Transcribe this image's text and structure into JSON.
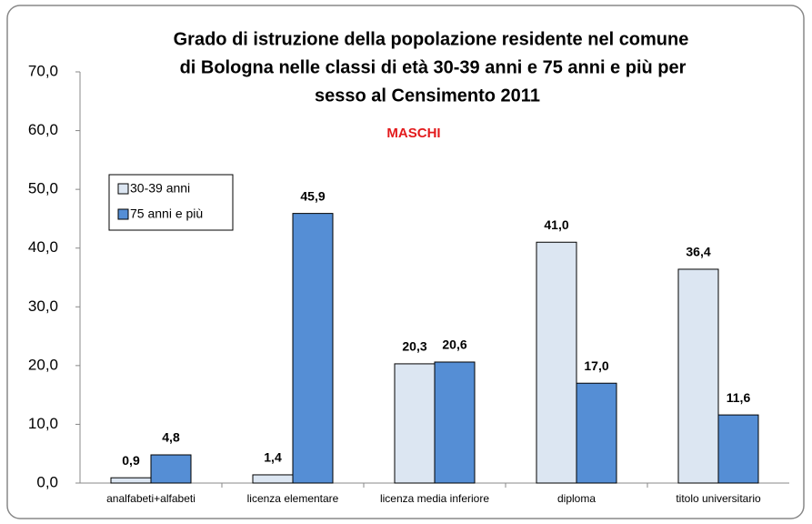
{
  "chart_data": {
    "type": "bar",
    "title": [
      "Grado di istruzione della popolazione residente nel comune",
      "di Bologna nelle classi di età 30-39 anni e 75 anni e più per",
      "sesso al Censimento 2011"
    ],
    "subtitle": "MASCHI",
    "categories": [
      "analfabeti+alfabeti",
      "licenza elementare",
      "licenza media inferiore",
      "diploma",
      "titolo universitario"
    ],
    "series": [
      {
        "name": "30-39 anni",
        "color": "#dce6f2",
        "values": [
          0.9,
          1.4,
          20.3,
          41.0,
          36.4
        ],
        "value_labels": [
          "0,9",
          "1,4",
          "20,3",
          "41,0",
          "36,4"
        ]
      },
      {
        "name": "75 anni e più",
        "color": "#558ed5",
        "values": [
          4.8,
          45.9,
          20.6,
          17.0,
          11.6
        ],
        "value_labels": [
          "4,8",
          "45,9",
          "20,6",
          "17,0",
          "11,6"
        ]
      }
    ],
    "ylim": [
      0,
      70
    ],
    "yticks": [
      {
        "value": 0,
        "label": "0,0"
      },
      {
        "value": 10,
        "label": "10,0"
      },
      {
        "value": 20,
        "label": "20,0"
      },
      {
        "value": 30,
        "label": "30,0"
      },
      {
        "value": 40,
        "label": "40,0"
      },
      {
        "value": 50,
        "label": "50,0"
      },
      {
        "value": 60,
        "label": "60,0"
      },
      {
        "value": 70,
        "label": "70,0"
      }
    ],
    "legend": "upper left"
  }
}
